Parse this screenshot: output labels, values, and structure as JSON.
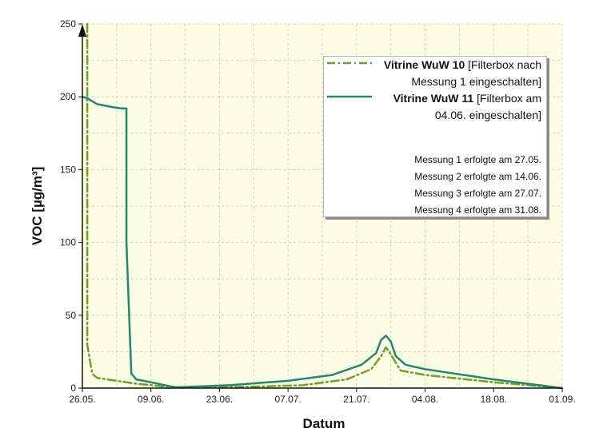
{
  "chart_data": {
    "type": "line",
    "xlabel": "Datum",
    "ylabel": "VOC [µg/m³]",
    "x_ticks": [
      "26.05.",
      "09.06.",
      "23.06.",
      "07.07.",
      "21.07.",
      "04.08.",
      "18.08.",
      "01.09."
    ],
    "y_ticks": [
      "0",
      "50",
      "100",
      "150",
      "200",
      "250"
    ],
    "ylim": [
      0,
      250
    ],
    "xlim": [
      "26.05.",
      "01.09."
    ],
    "grid": true,
    "legend_position": "top-right",
    "series": [
      {
        "name_bold": "Vitrine WuW 10",
        "name_rest_1": " [Filterbox nach",
        "name_rest_2": "Messung 1 eingeschalten]",
        "style": "dash-dot",
        "color": "#6aa222",
        "points": [
          {
            "x": "27.05.",
            "y": 250
          },
          {
            "x": "27.05.",
            "y": 30
          },
          {
            "x": "28.05.",
            "y": 10
          },
          {
            "x": "29.05.",
            "y": 7
          },
          {
            "x": "02.06.",
            "y": 5
          },
          {
            "x": "06.06.",
            "y": 3
          },
          {
            "x": "12.06.",
            "y": 1
          },
          {
            "x": "16.06.",
            "y": 0.5
          },
          {
            "x": "30.06.",
            "y": 1
          },
          {
            "x": "10.07.",
            "y": 2
          },
          {
            "x": "19.07.",
            "y": 6
          },
          {
            "x": "24.07.",
            "y": 13
          },
          {
            "x": "26.07.",
            "y": 22
          },
          {
            "x": "27.07.",
            "y": 28
          },
          {
            "x": "28.07.",
            "y": 23
          },
          {
            "x": "30.07.",
            "y": 12
          },
          {
            "x": "04.08.",
            "y": 9
          },
          {
            "x": "18.08.",
            "y": 4
          },
          {
            "x": "01.09.",
            "y": 0
          }
        ]
      },
      {
        "name_bold": "Vitrine WuW 11",
        "name_rest_1": " [Filterbox am",
        "name_rest_2": "04.06. eingeschalten]",
        "style": "solid",
        "color": "#1a8b6e",
        "points": [
          {
            "x": "26.05.",
            "y": 200
          },
          {
            "x": "27.05.",
            "y": 199
          },
          {
            "x": "28.05.",
            "y": 197
          },
          {
            "x": "29.05.",
            "y": 195
          },
          {
            "x": "01.06.",
            "y": 193
          },
          {
            "x": "03.06.",
            "y": 192
          },
          {
            "x": "04.06.",
            "y": 192
          },
          {
            "x": "04.06.",
            "y": 100
          },
          {
            "x": "05.06.",
            "y": 10
          },
          {
            "x": "06.06.",
            "y": 6
          },
          {
            "x": "09.06.",
            "y": 4
          },
          {
            "x": "14.06.",
            "y": 0.5
          },
          {
            "x": "25.06.",
            "y": 2
          },
          {
            "x": "07.07.",
            "y": 5
          },
          {
            "x": "16.07.",
            "y": 9
          },
          {
            "x": "22.07.",
            "y": 16
          },
          {
            "x": "25.07.",
            "y": 24
          },
          {
            "x": "26.07.",
            "y": 33
          },
          {
            "x": "27.07.",
            "y": 36
          },
          {
            "x": "28.07.",
            "y": 32
          },
          {
            "x": "29.07.",
            "y": 22
          },
          {
            "x": "31.07.",
            "y": 16
          },
          {
            "x": "04.08.",
            "y": 13
          },
          {
            "x": "18.08.",
            "y": 6
          },
          {
            "x": "01.09.",
            "y": 0
          }
        ]
      }
    ],
    "annotations": [
      "Messung 1 erfolgte am 27.05.",
      "Messung 2 erfolgte am 14.06.",
      "Messung 3 erfolgte am 27.07.",
      "Messung 4 erfolgte am 31.08."
    ],
    "colors": {
      "plot_background": "#fdfde6",
      "grid": "#c8c8a8",
      "axis": "#111111"
    }
  }
}
